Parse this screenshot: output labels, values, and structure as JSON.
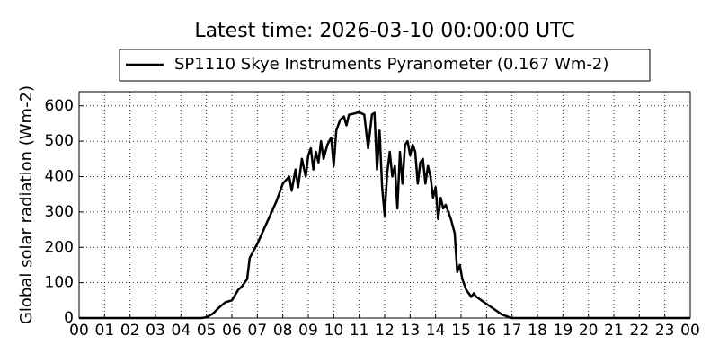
{
  "chart_data": {
    "type": "line",
    "title": "Latest time: 2026-03-10 00:00:00 UTC",
    "y_label": "Global solar radiation (Wm-2)",
    "x": [
      0,
      4.8,
      5.0,
      5.25,
      5.5,
      5.75,
      6.0,
      6.25,
      6.4,
      6.5,
      6.6,
      6.7,
      7.0,
      7.25,
      7.5,
      7.75,
      8.0,
      8.25,
      8.35,
      8.5,
      8.6,
      8.75,
      8.9,
      9.0,
      9.1,
      9.2,
      9.3,
      9.4,
      9.5,
      9.6,
      9.75,
      9.9,
      10.0,
      10.1,
      10.25,
      10.4,
      10.5,
      10.6,
      10.8,
      11.0,
      11.2,
      11.35,
      11.5,
      11.6,
      11.7,
      11.8,
      11.9,
      12.0,
      12.1,
      12.2,
      12.3,
      12.4,
      12.5,
      12.6,
      12.7,
      12.8,
      12.9,
      13.0,
      13.1,
      13.2,
      13.3,
      13.4,
      13.5,
      13.6,
      13.7,
      13.8,
      13.9,
      14.0,
      14.1,
      14.2,
      14.3,
      14.4,
      14.5,
      14.6,
      14.75,
      14.85,
      14.95,
      15.05,
      15.2,
      15.4,
      15.5,
      15.6,
      15.8,
      16.0,
      16.3,
      16.6,
      16.9,
      17.0,
      24
    ],
    "series": [
      {
        "name": "SP1110 Skye Instruments Pyranometer (0.167 Wm-2)",
        "color": "#000000",
        "values": [
          0,
          0,
          2,
          12,
          30,
          45,
          50,
          80,
          90,
          100,
          110,
          170,
          210,
          250,
          290,
          330,
          380,
          400,
          360,
          420,
          370,
          450,
          400,
          460,
          480,
          420,
          470,
          440,
          500,
          450,
          490,
          510,
          430,
          530,
          560,
          570,
          545,
          575,
          578,
          582,
          575,
          480,
          575,
          580,
          420,
          530,
          370,
          290,
          410,
          470,
          400,
          430,
          310,
          470,
          380,
          490,
          500,
          460,
          490,
          470,
          380,
          440,
          450,
          380,
          430,
          400,
          340,
          370,
          280,
          340,
          310,
          320,
          300,
          280,
          240,
          130,
          150,
          110,
          80,
          60,
          70,
          60,
          50,
          40,
          25,
          10,
          2,
          0,
          0
        ]
      }
    ],
    "xlim": [
      0,
      24
    ],
    "xticks": [
      {
        "value": 0,
        "label": "00"
      },
      {
        "value": 1,
        "label": "01"
      },
      {
        "value": 2,
        "label": "02"
      },
      {
        "value": 3,
        "label": "03"
      },
      {
        "value": 4,
        "label": "04"
      },
      {
        "value": 5,
        "label": "05"
      },
      {
        "value": 6,
        "label": "06"
      },
      {
        "value": 7,
        "label": "07"
      },
      {
        "value": 8,
        "label": "08"
      },
      {
        "value": 9,
        "label": "09"
      },
      10,
      11,
      12,
      13,
      14,
      15,
      16,
      17,
      18,
      19,
      20,
      21,
      22,
      23,
      {
        "value": 24,
        "label": "00"
      }
    ],
    "ylim": [
      0,
      640
    ],
    "yticks": [
      0,
      100,
      200,
      300,
      400,
      500,
      600
    ],
    "grid": true
  }
}
